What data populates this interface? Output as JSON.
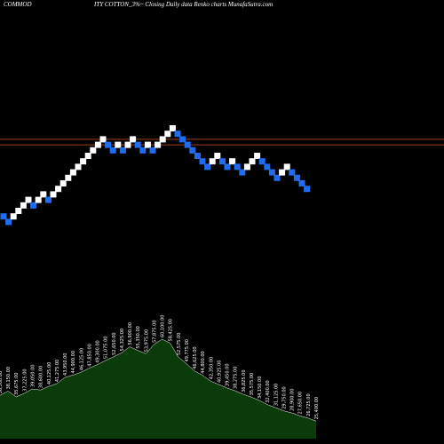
{
  "header": {
    "left": "COMMOD",
    "right": "ITY COTTON_3%~  Closing Daily data  Renko  charts MunafaSutra.com"
  },
  "colors": {
    "background": "#000000",
    "up_brick": "#ffffff",
    "down_brick": "#1e6cf0",
    "level_line": "#a0401a",
    "volume_fill": "#0b3a0b",
    "volume_line": "#ffffff"
  },
  "chart_data": {
    "type": "renko",
    "price_levels": [
      44,
      43
    ],
    "bricks": [
      {
        "v": 30,
        "d": "down"
      },
      {
        "v": 29,
        "d": "down"
      },
      {
        "v": 30,
        "d": "up"
      },
      {
        "v": 31,
        "d": "up"
      },
      {
        "v": 32,
        "d": "up"
      },
      {
        "v": 33,
        "d": "up"
      },
      {
        "v": 32,
        "d": "down"
      },
      {
        "v": 33,
        "d": "up"
      },
      {
        "v": 34,
        "d": "up"
      },
      {
        "v": 33,
        "d": "down"
      },
      {
        "v": 34,
        "d": "up"
      },
      {
        "v": 35,
        "d": "up"
      },
      {
        "v": 36,
        "d": "up"
      },
      {
        "v": 37,
        "d": "up"
      },
      {
        "v": 38,
        "d": "up"
      },
      {
        "v": 39,
        "d": "up"
      },
      {
        "v": 40,
        "d": "up"
      },
      {
        "v": 41,
        "d": "up"
      },
      {
        "v": 42,
        "d": "up"
      },
      {
        "v": 43,
        "d": "up"
      },
      {
        "v": 44,
        "d": "up"
      },
      {
        "v": 43,
        "d": "down"
      },
      {
        "v": 42,
        "d": "down"
      },
      {
        "v": 43,
        "d": "up"
      },
      {
        "v": 42,
        "d": "down"
      },
      {
        "v": 43,
        "d": "up"
      },
      {
        "v": 44,
        "d": "up"
      },
      {
        "v": 43,
        "d": "down"
      },
      {
        "v": 42,
        "d": "down"
      },
      {
        "v": 43,
        "d": "up"
      },
      {
        "v": 42,
        "d": "down"
      },
      {
        "v": 43,
        "d": "up"
      },
      {
        "v": 44,
        "d": "up"
      },
      {
        "v": 45,
        "d": "up"
      },
      {
        "v": 46,
        "d": "up"
      },
      {
        "v": 45,
        "d": "down"
      },
      {
        "v": 44,
        "d": "down"
      },
      {
        "v": 43,
        "d": "down"
      },
      {
        "v": 42,
        "d": "down"
      },
      {
        "v": 41,
        "d": "down"
      },
      {
        "v": 40,
        "d": "down"
      },
      {
        "v": 39,
        "d": "down"
      },
      {
        "v": 40,
        "d": "up"
      },
      {
        "v": 41,
        "d": "up"
      },
      {
        "v": 40,
        "d": "down"
      },
      {
        "v": 39,
        "d": "down"
      },
      {
        "v": 40,
        "d": "up"
      },
      {
        "v": 39,
        "d": "down"
      },
      {
        "v": 38,
        "d": "down"
      },
      {
        "v": 39,
        "d": "up"
      },
      {
        "v": 40,
        "d": "up"
      },
      {
        "v": 41,
        "d": "up"
      },
      {
        "v": 40,
        "d": "down"
      },
      {
        "v": 39,
        "d": "down"
      },
      {
        "v": 38,
        "d": "down"
      },
      {
        "v": 37,
        "d": "down"
      },
      {
        "v": 38,
        "d": "up"
      },
      {
        "v": 39,
        "d": "up"
      },
      {
        "v": 38,
        "d": "down"
      },
      {
        "v": 37,
        "d": "down"
      },
      {
        "v": 36,
        "d": "down"
      },
      {
        "v": 35,
        "d": "down"
      }
    ],
    "volume_labels": [
      "36,300.00",
      "38,150.00",
      "35,675.00",
      "37,225.00",
      "39,050.00",
      "38,600.00",
      "40,125.00",
      "41,275.00",
      "43,950.00",
      "44,900.00",
      "46,125.00",
      "47,850.00",
      "49,300.00",
      "51,075.00",
      "52,650.00",
      "54,325.00",
      "56,900.00",
      "55,350.00",
      "53,975.00",
      "57,875.00",
      "60,100.00",
      "58,425.00",
      "52,575.00",
      "49,775.00",
      "46,625.00",
      "44,800.00",
      "42,350.00",
      "40,925.00",
      "39,450.00",
      "38,275.00",
      "36,825.00",
      "35,575.00",
      "34,150.00",
      "32,400.00",
      "31,125.00",
      "29,750.00",
      "28,900.00",
      "27,650.00",
      "26,725.00",
      "25,400.00"
    ]
  }
}
